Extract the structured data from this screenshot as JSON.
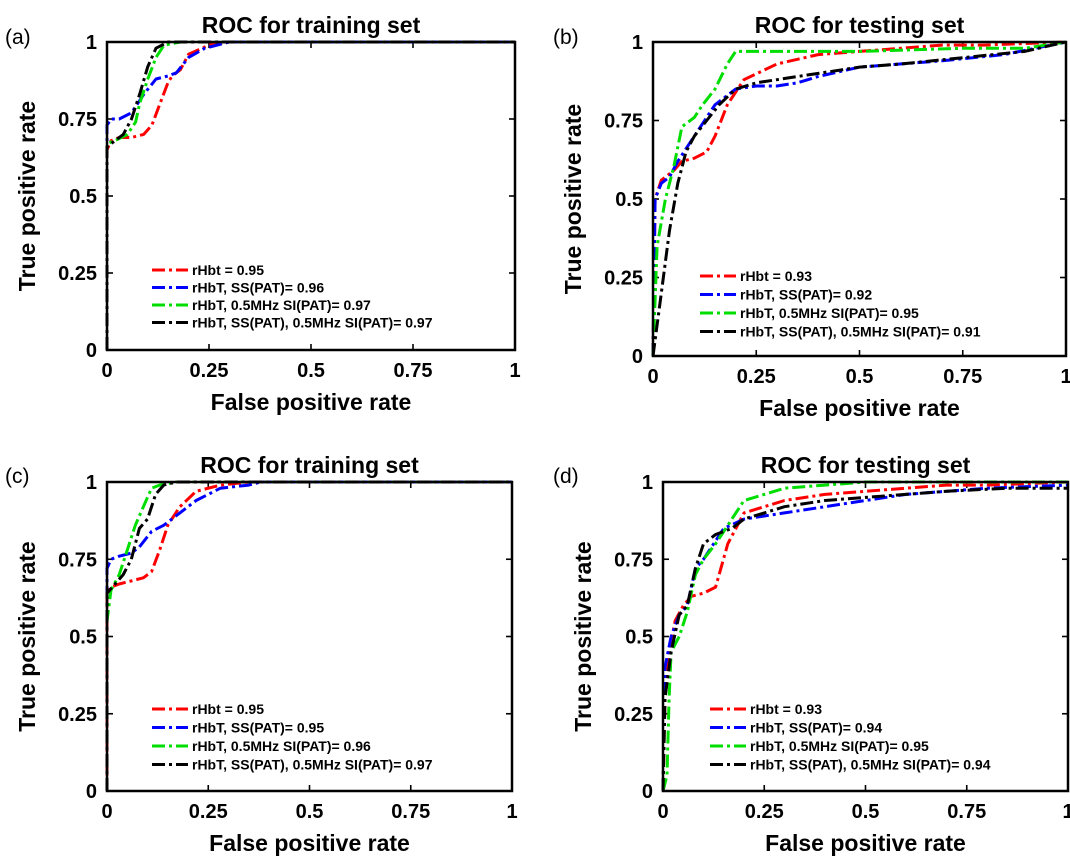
{
  "chart_data": [
    {
      "panel": "(a)",
      "type": "line",
      "title": "ROC for training set",
      "xlabel": "False positive rate",
      "ylabel": "True positive rate",
      "xlim": [
        0,
        1
      ],
      "ylim": [
        0,
        1
      ],
      "xticks": [
        "0",
        "0.25",
        "0.5",
        "0.75",
        "1"
      ],
      "yticks": [
        "0",
        "0.25",
        "0.5",
        "0.75",
        "1"
      ],
      "legend_position": "bottom-left",
      "series": [
        {
          "name": "rHbt = 0.95",
          "color": "#ff0000",
          "x": [
            0,
            0,
            0.01,
            0.03,
            0.06,
            0.09,
            0.11,
            0.13,
            0.15,
            0.16,
            0.18,
            0.2,
            0.25,
            0.3,
            1
          ],
          "y": [
            0,
            0.65,
            0.68,
            0.69,
            0.69,
            0.7,
            0.73,
            0.8,
            0.87,
            0.89,
            0.91,
            0.96,
            0.99,
            1,
            1
          ]
        },
        {
          "name": "rHbT, SS(PAT)= 0.96",
          "color": "#0000ff",
          "x": [
            0,
            0,
            0.01,
            0.03,
            0.06,
            0.09,
            0.12,
            0.15,
            0.17,
            0.2,
            0.24,
            0.3,
            1
          ],
          "y": [
            0,
            0.73,
            0.75,
            0.75,
            0.77,
            0.83,
            0.88,
            0.89,
            0.9,
            0.95,
            0.98,
            1,
            1
          ]
        },
        {
          "name": "rHbT, 0.5MHz SI(PAT)= 0.97",
          "color": "#00dd00",
          "x": [
            0,
            0,
            0.02,
            0.05,
            0.07,
            0.08,
            0.1,
            0.12,
            0.14,
            0.18,
            1
          ],
          "y": [
            0,
            0.67,
            0.68,
            0.7,
            0.74,
            0.8,
            0.88,
            0.95,
            0.99,
            1,
            1
          ]
        },
        {
          "name": "rHbT, SS(PAT), 0.5MHz SI(PAT)= 0.97",
          "color": "#000000",
          "x": [
            0,
            0,
            0.02,
            0.04,
            0.06,
            0.08,
            0.1,
            0.12,
            0.15,
            0.2,
            1
          ],
          "y": [
            0,
            0.66,
            0.68,
            0.7,
            0.75,
            0.83,
            0.92,
            0.98,
            1,
            1,
            1
          ]
        }
      ]
    },
    {
      "panel": "(b)",
      "type": "line",
      "title": "ROC for testing set",
      "xlabel": "False positive rate",
      "ylabel": "True positive rate",
      "xlim": [
        0,
        1
      ],
      "ylim": [
        0,
        1
      ],
      "xticks": [
        "0",
        "0.25",
        "0.5",
        "0.75",
        "1"
      ],
      "yticks": [
        "0",
        "0.25",
        "0.5",
        "0.75",
        "1"
      ],
      "legend_position": "bottom-left",
      "series": [
        {
          "name": "rHbt = 0.93",
          "color": "#ff0000",
          "x": [
            0,
            0.005,
            0.02,
            0.05,
            0.07,
            0.1,
            0.13,
            0.15,
            0.18,
            0.22,
            0.3,
            0.4,
            0.5,
            0.6,
            0.7,
            0.8,
            1
          ],
          "y": [
            0,
            0.5,
            0.56,
            0.59,
            0.62,
            0.63,
            0.65,
            0.7,
            0.8,
            0.88,
            0.93,
            0.96,
            0.97,
            0.98,
            0.99,
            0.99,
            1
          ]
        },
        {
          "name": "rHbT, SS(PAT)= 0.92",
          "color": "#0000ff",
          "x": [
            0,
            0.005,
            0.02,
            0.04,
            0.06,
            0.1,
            0.15,
            0.2,
            0.25,
            0.3,
            0.35,
            0.4,
            0.5,
            0.7,
            0.85,
            1
          ],
          "y": [
            0,
            0.5,
            0.55,
            0.57,
            0.62,
            0.7,
            0.8,
            0.85,
            0.86,
            0.86,
            0.87,
            0.89,
            0.92,
            0.94,
            0.96,
            1
          ]
        },
        {
          "name": "rHbT, 0.5MHz SI(PAT)= 0.95",
          "color": "#00dd00",
          "x": [
            0,
            0.01,
            0.03,
            0.05,
            0.07,
            0.1,
            0.12,
            0.15,
            0.18,
            0.2,
            0.25,
            0.5,
            0.75,
            0.9,
            1
          ],
          "y": [
            0,
            0.35,
            0.5,
            0.6,
            0.73,
            0.76,
            0.8,
            0.85,
            0.93,
            0.97,
            0.97,
            0.97,
            0.98,
            0.98,
            1
          ]
        },
        {
          "name": "rHbT, SS(PAT), 0.5MHz SI(PAT)= 0.91",
          "color": "#000000",
          "x": [
            0,
            0.02,
            0.04,
            0.06,
            0.08,
            0.1,
            0.13,
            0.16,
            0.2,
            0.25,
            0.3,
            0.35,
            0.4,
            0.5,
            0.6,
            0.75,
            0.9,
            1
          ],
          "y": [
            0,
            0.2,
            0.4,
            0.55,
            0.65,
            0.7,
            0.75,
            0.8,
            0.85,
            0.87,
            0.88,
            0.89,
            0.9,
            0.92,
            0.93,
            0.95,
            0.97,
            1
          ]
        }
      ]
    },
    {
      "panel": "(c)",
      "type": "line",
      "title": "ROC for training set",
      "xlabel": "False positive rate",
      "ylabel": "True positive rate",
      "xlim": [
        0,
        1
      ],
      "ylim": [
        0,
        1
      ],
      "xticks": [
        "0",
        "0.25",
        "0.5",
        "0.75",
        "1"
      ],
      "yticks": [
        "0",
        "0.25",
        "0.5",
        "0.75",
        "1"
      ],
      "legend_position": "bottom-left",
      "series": [
        {
          "name": "rHbt = 0.95",
          "color": "#ff0000",
          "x": [
            0,
            0,
            0.01,
            0.03,
            0.06,
            0.09,
            0.11,
            0.13,
            0.15,
            0.16,
            0.18,
            0.22,
            0.28,
            0.35,
            1
          ],
          "y": [
            0.05,
            0.64,
            0.66,
            0.67,
            0.68,
            0.69,
            0.71,
            0.78,
            0.86,
            0.88,
            0.92,
            0.97,
            0.99,
            1,
            1
          ]
        },
        {
          "name": "rHbT, SS(PAT)= 0.95",
          "color": "#0000ff",
          "x": [
            0,
            0,
            0.01,
            0.03,
            0.06,
            0.08,
            0.11,
            0.14,
            0.18,
            0.22,
            0.28,
            0.35,
            0.38,
            1
          ],
          "y": [
            0,
            0.72,
            0.75,
            0.76,
            0.77,
            0.79,
            0.84,
            0.86,
            0.9,
            0.94,
            0.98,
            0.99,
            1,
            1
          ]
        },
        {
          "name": "rHbT, 0.5MHz SI(PAT)= 0.96",
          "color": "#00dd00",
          "x": [
            0,
            0,
            0.01,
            0.03,
            0.05,
            0.07,
            0.09,
            0.11,
            0.13,
            0.17,
            1
          ],
          "y": [
            0,
            0.55,
            0.65,
            0.7,
            0.78,
            0.86,
            0.92,
            0.98,
            0.99,
            1,
            1
          ]
        },
        {
          "name": "rHbT, SS(PAT), 0.5MHz SI(PAT)= 0.97",
          "color": "#000000",
          "x": [
            0,
            0,
            0.02,
            0.04,
            0.06,
            0.08,
            0.1,
            0.12,
            0.14,
            0.17,
            1
          ],
          "y": [
            0,
            0.64,
            0.67,
            0.7,
            0.75,
            0.85,
            0.88,
            0.96,
            0.99,
            1,
            1
          ]
        }
      ]
    },
    {
      "panel": "(d)",
      "type": "line",
      "title": "ROC for testing set",
      "xlabel": "False positive rate",
      "ylabel": "True positive rate",
      "xlim": [
        0,
        1
      ],
      "ylim": [
        0,
        1
      ],
      "xticks": [
        "0",
        "0.25",
        "0.5",
        "0.75",
        "1"
      ],
      "yticks": [
        "0",
        "0.25",
        "0.5",
        "0.75",
        "1"
      ],
      "legend_position": "bottom-left",
      "series": [
        {
          "name": "rHbt = 0.93",
          "color": "#ff0000",
          "x": [
            0,
            0.005,
            0.015,
            0.03,
            0.05,
            0.07,
            0.1,
            0.13,
            0.16,
            0.2,
            0.25,
            0.3,
            0.4,
            0.5,
            0.6,
            0.7,
            0.8,
            1
          ],
          "y": [
            0,
            0.3,
            0.45,
            0.55,
            0.6,
            0.63,
            0.64,
            0.66,
            0.8,
            0.9,
            0.92,
            0.94,
            0.96,
            0.97,
            0.98,
            0.99,
            0.99,
            1
          ]
        },
        {
          "name": "rHbT, SS(PAT)= 0.94",
          "color": "#0000ff",
          "x": [
            0,
            0.005,
            0.02,
            0.04,
            0.06,
            0.08,
            0.1,
            0.15,
            0.2,
            0.25,
            0.3,
            0.4,
            0.5,
            0.6,
            0.8,
            1
          ],
          "y": [
            0,
            0.4,
            0.5,
            0.57,
            0.6,
            0.72,
            0.75,
            0.85,
            0.88,
            0.89,
            0.9,
            0.92,
            0.94,
            0.96,
            0.98,
            0.99
          ]
        },
        {
          "name": "rHbT, 0.5MHz SI(PAT)= 0.95",
          "color": "#00dd00",
          "x": [
            0,
            0.01,
            0.015,
            0.02,
            0.04,
            0.06,
            0.08,
            0.1,
            0.13,
            0.16,
            0.2,
            0.25,
            0.3,
            0.4,
            0.5,
            0.7,
            1
          ],
          "y": [
            0,
            0.05,
            0.3,
            0.45,
            0.5,
            0.58,
            0.7,
            0.75,
            0.8,
            0.86,
            0.94,
            0.96,
            0.98,
            0.99,
            1,
            1,
            1
          ]
        },
        {
          "name": "rHbT, SS(PAT), 0.5MHz SI(PAT)= 0.94",
          "color": "#000000",
          "x": [
            0,
            0.005,
            0.02,
            0.04,
            0.06,
            0.08,
            0.1,
            0.13,
            0.17,
            0.2,
            0.25,
            0.3,
            0.4,
            0.5,
            0.7,
            0.85,
            1
          ],
          "y": [
            0,
            0.3,
            0.45,
            0.57,
            0.6,
            0.72,
            0.8,
            0.83,
            0.85,
            0.88,
            0.9,
            0.92,
            0.94,
            0.95,
            0.97,
            0.98,
            0.98
          ]
        }
      ]
    }
  ]
}
